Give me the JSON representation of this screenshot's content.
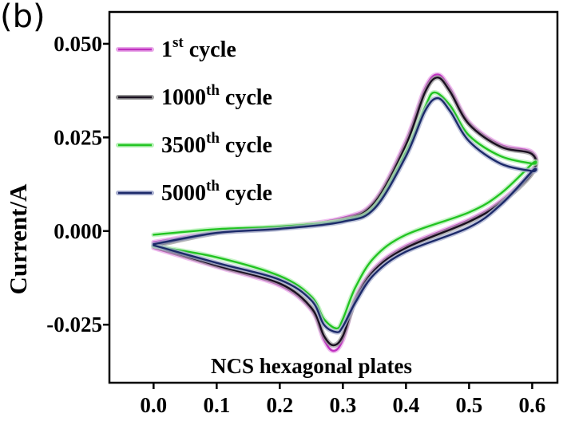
{
  "chart_data": {
    "type": "line",
    "panel_label": "(b)",
    "xlabel": "",
    "ylabel": "Current/A",
    "xlim": [
      -0.07,
      0.64
    ],
    "ylim": [
      -0.0405,
      0.0585
    ],
    "x_ticks": [
      {
        "value": 0.0,
        "label": "0.0"
      },
      {
        "value": 0.1,
        "label": "0.1"
      },
      {
        "value": 0.2,
        "label": "0.2"
      },
      {
        "value": 0.3,
        "label": "0.3"
      },
      {
        "value": 0.4,
        "label": "0.4"
      },
      {
        "value": 0.5,
        "label": "0.5"
      },
      {
        "value": 0.6,
        "label": "0.6"
      }
    ],
    "y_ticks": [
      {
        "value": 0.05,
        "label": "0.050"
      },
      {
        "value": 0.025,
        "label": "0.025"
      },
      {
        "value": 0.0,
        "label": "0.000"
      },
      {
        "value": -0.025,
        "label": "-0.025"
      }
    ],
    "annotation": "NCS hexagonal plates",
    "legend_position": "top-left",
    "series": [
      {
        "name": "1st cycle",
        "label_base": "1",
        "label_sup": "st",
        "label_tail": " cycle",
        "color": "#c030c0",
        "glow": "#e8a8e8",
        "anodic": [
          [
            0.0,
            -0.003
          ],
          [
            0.1,
            -0.0003
          ],
          [
            0.2,
            0.001
          ],
          [
            0.3,
            0.0035
          ],
          [
            0.35,
            0.008
          ],
          [
            0.4,
            0.024
          ],
          [
            0.43,
            0.038
          ],
          [
            0.45,
            0.0418
          ],
          [
            0.47,
            0.038
          ],
          [
            0.5,
            0.029
          ],
          [
            0.55,
            0.023
          ],
          [
            0.6,
            0.021
          ]
        ],
        "cathodic": [
          [
            0.6,
            0.016
          ],
          [
            0.55,
            0.008
          ],
          [
            0.5,
            0.003
          ],
          [
            0.4,
            -0.004
          ],
          [
            0.35,
            -0.01
          ],
          [
            0.32,
            -0.018
          ],
          [
            0.3,
            -0.029
          ],
          [
            0.285,
            -0.032
          ],
          [
            0.27,
            -0.029
          ],
          [
            0.25,
            -0.021
          ],
          [
            0.2,
            -0.0145
          ],
          [
            0.1,
            -0.0095
          ],
          [
            0.0,
            -0.0045
          ]
        ]
      },
      {
        "name": "1000th cycle",
        "label_base": "1000",
        "label_sup": "th",
        "label_tail": " cycle",
        "color": "#1a1020",
        "glow": "#9a9a9a",
        "anodic": [
          [
            0.0,
            -0.004
          ],
          [
            0.1,
            -0.0005
          ],
          [
            0.2,
            0.0008
          ],
          [
            0.3,
            0.003
          ],
          [
            0.35,
            0.0075
          ],
          [
            0.4,
            0.023
          ],
          [
            0.43,
            0.037
          ],
          [
            0.45,
            0.041
          ],
          [
            0.47,
            0.0372
          ],
          [
            0.5,
            0.0285
          ],
          [
            0.55,
            0.0225
          ],
          [
            0.6,
            0.0205
          ]
        ],
        "cathodic": [
          [
            0.6,
            0.0155
          ],
          [
            0.55,
            0.0075
          ],
          [
            0.5,
            0.0025
          ],
          [
            0.4,
            -0.0045
          ],
          [
            0.35,
            -0.0105
          ],
          [
            0.32,
            -0.0185
          ],
          [
            0.3,
            -0.028
          ],
          [
            0.285,
            -0.0305
          ],
          [
            0.27,
            -0.028
          ],
          [
            0.25,
            -0.0205
          ],
          [
            0.2,
            -0.014
          ],
          [
            0.1,
            -0.0092
          ],
          [
            0.0,
            -0.004
          ]
        ]
      },
      {
        "name": "3500th cycle",
        "label_base": "3500",
        "label_sup": "th",
        "label_tail": " cycle",
        "color": "#22c422",
        "glow": "#b6f0b6",
        "anodic": [
          [
            0.0,
            -0.001
          ],
          [
            0.1,
            0.0005
          ],
          [
            0.2,
            0.0012
          ],
          [
            0.3,
            0.0028
          ],
          [
            0.35,
            0.0065
          ],
          [
            0.4,
            0.021
          ],
          [
            0.43,
            0.033
          ],
          [
            0.445,
            0.037
          ],
          [
            0.47,
            0.0335
          ],
          [
            0.5,
            0.0255
          ],
          [
            0.55,
            0.02
          ],
          [
            0.6,
            0.018
          ]
        ],
        "cathodic": [
          [
            0.6,
            0.018
          ],
          [
            0.55,
            0.01
          ],
          [
            0.5,
            0.005
          ],
          [
            0.4,
            -0.001
          ],
          [
            0.35,
            -0.007
          ],
          [
            0.32,
            -0.015
          ],
          [
            0.3,
            -0.0235
          ],
          [
            0.29,
            -0.026
          ],
          [
            0.27,
            -0.0235
          ],
          [
            0.25,
            -0.0175
          ],
          [
            0.2,
            -0.012
          ],
          [
            0.1,
            -0.007
          ],
          [
            0.0,
            -0.004
          ]
        ]
      },
      {
        "name": "5000th cycle",
        "label_base": "5000",
        "label_sup": "th",
        "label_tail": " cycle",
        "color": "#1c2a6a",
        "glow": "#aab0d0",
        "anodic": [
          [
            0.0,
            -0.0035
          ],
          [
            0.1,
            -0.0005
          ],
          [
            0.2,
            0.0006
          ],
          [
            0.3,
            0.0025
          ],
          [
            0.35,
            0.006
          ],
          [
            0.4,
            0.02
          ],
          [
            0.43,
            0.032
          ],
          [
            0.45,
            0.0355
          ],
          [
            0.47,
            0.032
          ],
          [
            0.5,
            0.024
          ],
          [
            0.55,
            0.018
          ],
          [
            0.6,
            0.016
          ]
        ],
        "cathodic": [
          [
            0.6,
            0.016
          ],
          [
            0.55,
            0.007
          ],
          [
            0.5,
            0.001
          ],
          [
            0.4,
            -0.0055
          ],
          [
            0.35,
            -0.0115
          ],
          [
            0.32,
            -0.019
          ],
          [
            0.3,
            -0.0255
          ],
          [
            0.29,
            -0.027
          ],
          [
            0.27,
            -0.025
          ],
          [
            0.25,
            -0.0185
          ],
          [
            0.2,
            -0.013
          ],
          [
            0.1,
            -0.0085
          ],
          [
            0.0,
            -0.0038
          ]
        ]
      }
    ]
  }
}
